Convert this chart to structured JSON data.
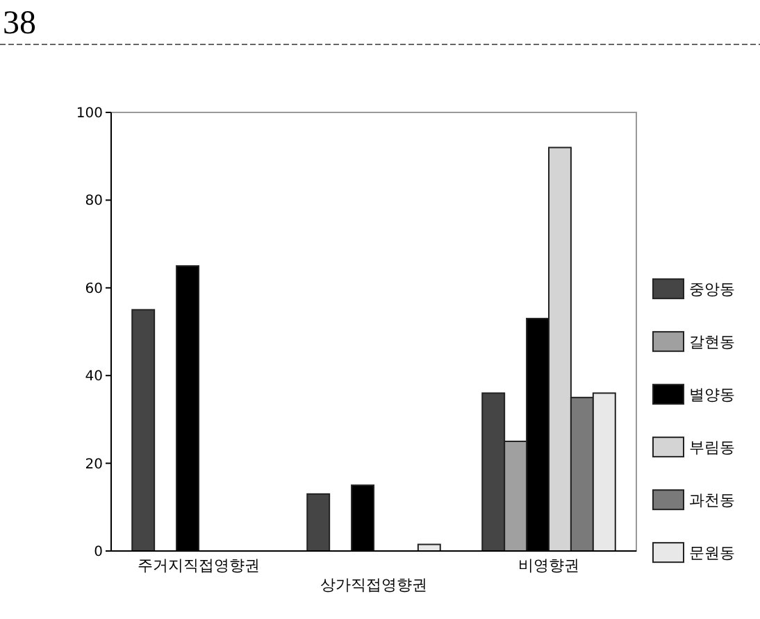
{
  "chart_data": {
    "type": "bar",
    "categories": [
      "주거지직접영향권",
      "상가직접영향권",
      "비영향권"
    ],
    "series": [
      {
        "name": "중앙동",
        "color": "#454545",
        "values": [
          55,
          13,
          36
        ]
      },
      {
        "name": "갈현동",
        "color": "#a0a0a0",
        "values": [
          0,
          0,
          25
        ]
      },
      {
        "name": "별양동",
        "color": "#000000",
        "values": [
          65,
          15,
          53
        ]
      },
      {
        "name": "부림동",
        "color": "#d4d4d4",
        "values": [
          0,
          0,
          92
        ]
      },
      {
        "name": "과천동",
        "color": "#7a7a7a",
        "values": [
          0,
          0,
          35
        ]
      },
      {
        "name": "문원동",
        "color": "#e8e8e8",
        "values": [
          0,
          1.5,
          36
        ]
      }
    ],
    "ylim": [
      0,
      100
    ],
    "yticks": [
      0,
      20,
      40,
      60,
      80,
      100
    ],
    "grid": false,
    "legend": "right",
    "annotations": [
      "38"
    ]
  }
}
